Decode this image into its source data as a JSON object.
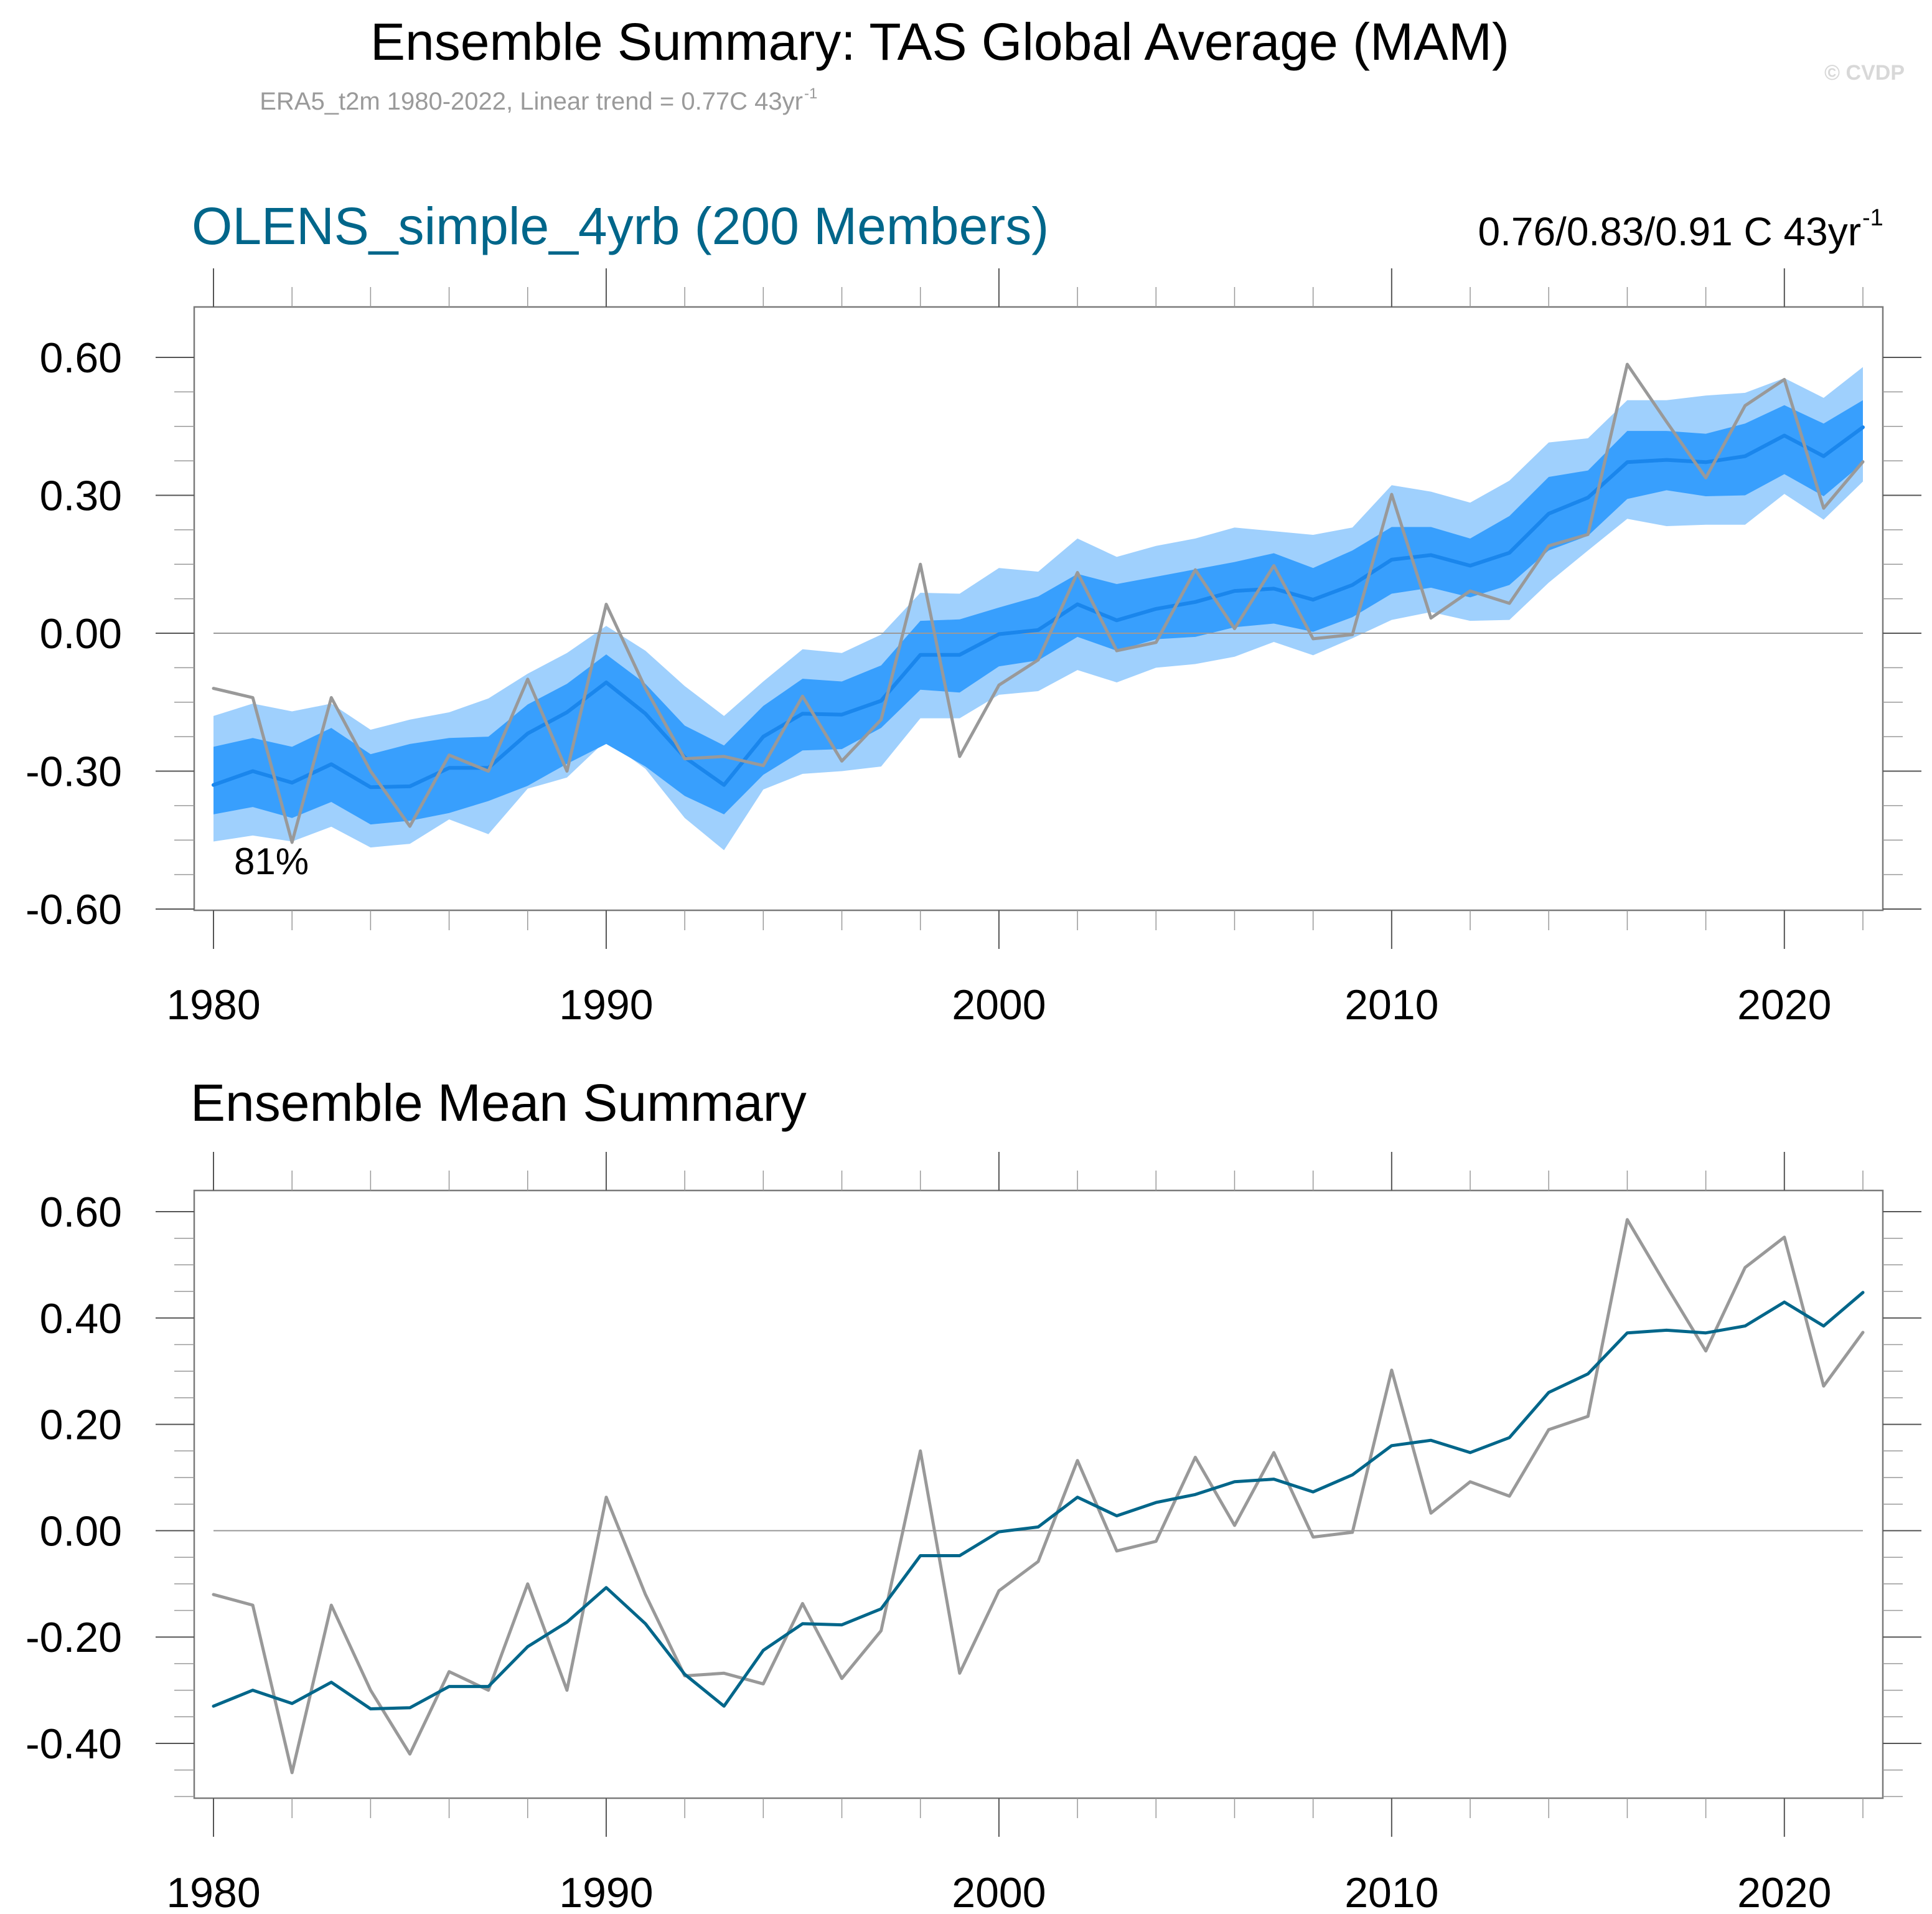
{
  "figure": {
    "title": "Ensemble Summary: TAS Global Average (MAM)",
    "subtitle_main": "ERA5_t2m 1980-2022, Linear trend = 0.77C 43yr",
    "subtitle_sup": "-1",
    "watermark": "© CVDP",
    "colors": {
      "light_band": "#9fd0fd",
      "dark_band": "#389ffd",
      "ens_mean_top": "#1a86ec",
      "ens_mean_bottom": "#00668a",
      "obs": "#999999",
      "panel_title": "#00668a"
    }
  },
  "chart_data": [
    {
      "type": "area",
      "title": "OLENS_simple_4yrb (200 Members)",
      "trend_text_main": "0.76/0.83/0.91 C 43yr",
      "trend_text_sup": "-1",
      "annotation": "81%",
      "xlabel": "",
      "ylabel": "",
      "xlim": [
        1980,
        2022
      ],
      "ylim": [
        -0.6,
        0.6
      ],
      "x_ticks": [
        1980,
        1990,
        2000,
        2010,
        2020
      ],
      "x_tick_labels": [
        "1980",
        "1990",
        "2000",
        "2010",
        "2020"
      ],
      "y_ticks": [
        -0.6,
        -0.3,
        0.0,
        0.3,
        0.6
      ],
      "y_tick_labels": [
        "-0.60",
        "-0.30",
        "0.00",
        "0.30",
        "0.60"
      ],
      "grid": false,
      "legend": "none",
      "x": [
        1980,
        1981,
        1982,
        1983,
        1984,
        1985,
        1986,
        1987,
        1988,
        1989,
        1990,
        1991,
        1992,
        1993,
        1994,
        1995,
        1996,
        1997,
        1998,
        1999,
        2000,
        2001,
        2002,
        2003,
        2004,
        2005,
        2006,
        2007,
        2008,
        2009,
        2010,
        2011,
        2012,
        2013,
        2014,
        2015,
        2016,
        2017,
        2018,
        2019,
        2020,
        2021,
        2022
      ],
      "series": [
        {
          "name": "Ensemble 2.5-97.5% upper",
          "role": "light_upper",
          "values": [
            -0.18,
            -0.153,
            -0.17,
            -0.153,
            -0.21,
            -0.188,
            -0.172,
            -0.142,
            -0.088,
            -0.043,
            0.016,
            -0.038,
            -0.115,
            -0.18,
            -0.105,
            -0.035,
            -0.043,
            -0.003,
            0.088,
            0.086,
            0.142,
            0.134,
            0.206,
            0.166,
            0.19,
            0.206,
            0.23,
            0.222,
            0.214,
            0.23,
            0.322,
            0.308,
            0.284,
            0.332,
            0.415,
            0.424,
            0.507,
            0.507,
            0.517,
            0.523,
            0.555,
            0.512,
            0.579
          ]
        },
        {
          "name": "Ensemble 10-90% upper",
          "role": "dark_upper",
          "values": [
            -0.247,
            -0.228,
            -0.247,
            -0.206,
            -0.263,
            -0.241,
            -0.228,
            -0.225,
            -0.155,
            -0.11,
            -0.046,
            -0.11,
            -0.201,
            -0.244,
            -0.158,
            -0.099,
            -0.105,
            -0.07,
            0.027,
            0.03,
            0.056,
            0.08,
            0.129,
            0.107,
            0.123,
            0.139,
            0.155,
            0.174,
            0.142,
            0.18,
            0.231,
            0.231,
            0.206,
            0.255,
            0.34,
            0.354,
            0.44,
            0.44,
            0.434,
            0.456,
            0.496,
            0.456,
            0.507
          ]
        },
        {
          "name": "Ensemble 10-90% lower",
          "role": "dark_lower",
          "values": [
            -0.394,
            -0.378,
            -0.402,
            -0.367,
            -0.416,
            -0.408,
            -0.391,
            -0.365,
            -0.332,
            -0.284,
            -0.241,
            -0.29,
            -0.354,
            -0.394,
            -0.308,
            -0.255,
            -0.252,
            -0.206,
            -0.123,
            -0.129,
            -0.072,
            -0.059,
            -0.008,
            -0.038,
            -0.013,
            -0.008,
            0.013,
            0.021,
            0.003,
            0.035,
            0.086,
            0.099,
            0.078,
            0.105,
            0.18,
            0.212,
            0.292,
            0.311,
            0.298,
            0.3,
            0.346,
            0.298,
            0.37
          ]
        },
        {
          "name": "Ensemble 2.5-97.5% lower",
          "role": "light_lower",
          "values": [
            -0.453,
            -0.44,
            -0.453,
            -0.421,
            -0.466,
            -0.458,
            -0.405,
            -0.437,
            -0.338,
            -0.314,
            -0.233,
            -0.295,
            -0.402,
            -0.472,
            -0.34,
            -0.306,
            -0.3,
            -0.29,
            -0.185,
            -0.185,
            -0.134,
            -0.126,
            -0.08,
            -0.107,
            -0.075,
            -0.067,
            -0.051,
            -0.019,
            -0.048,
            -0.011,
            0.029,
            0.046,
            0.027,
            0.029,
            0.11,
            0.18,
            0.249,
            0.233,
            0.236,
            0.236,
            0.303,
            0.247,
            0.33
          ]
        },
        {
          "name": "Ensemble Mean",
          "role": "mean",
          "values": [
            -0.33,
            -0.3,
            -0.325,
            -0.285,
            -0.335,
            -0.333,
            -0.293,
            -0.293,
            -0.218,
            -0.172,
            -0.107,
            -0.175,
            -0.27,
            -0.33,
            -0.225,
            -0.175,
            -0.177,
            -0.147,
            -0.047,
            -0.047,
            -0.002,
            0.007,
            0.063,
            0.028,
            0.053,
            0.068,
            0.092,
            0.097,
            0.073,
            0.105,
            0.16,
            0.17,
            0.147,
            0.175,
            0.26,
            0.295,
            0.372,
            0.377,
            0.372,
            0.385,
            0.43,
            0.385,
            0.448
          ]
        },
        {
          "name": "ERA5_t2m",
          "role": "obs",
          "values": [
            -0.12,
            -0.14,
            -0.455,
            -0.14,
            -0.3,
            -0.42,
            -0.265,
            -0.3,
            -0.1,
            -0.3,
            0.063,
            -0.12,
            -0.273,
            -0.268,
            -0.288,
            -0.137,
            -0.278,
            -0.188,
            0.15,
            -0.268,
            -0.113,
            -0.058,
            0.132,
            -0.038,
            -0.02,
            0.138,
            0.01,
            0.147,
            -0.012,
            -0.003,
            0.302,
            0.033,
            0.092,
            0.065,
            0.19,
            0.215,
            0.585,
            0.46,
            0.338,
            0.495,
            0.552,
            0.272,
            0.373
          ]
        }
      ]
    },
    {
      "type": "line",
      "title": "Ensemble Mean Summary",
      "xlabel": "",
      "ylabel": "",
      "xlim": [
        1980,
        2022
      ],
      "ylim": [
        -0.5,
        0.65
      ],
      "x_ticks": [
        1980,
        1990,
        2000,
        2010,
        2020
      ],
      "x_tick_labels": [
        "1980",
        "1990",
        "2000",
        "2010",
        "2020"
      ],
      "y_ticks": [
        -0.4,
        -0.2,
        0.0,
        0.2,
        0.4,
        0.6
      ],
      "y_tick_labels": [
        "-0.40",
        "-0.20",
        "0.00",
        "0.20",
        "0.40",
        "0.60"
      ],
      "grid": false,
      "legend": "none",
      "x": [
        1980,
        1981,
        1982,
        1983,
        1984,
        1985,
        1986,
        1987,
        1988,
        1989,
        1990,
        1991,
        1992,
        1993,
        1994,
        1995,
        1996,
        1997,
        1998,
        1999,
        2000,
        2001,
        2002,
        2003,
        2004,
        2005,
        2006,
        2007,
        2008,
        2009,
        2010,
        2011,
        2012,
        2013,
        2014,
        2015,
        2016,
        2017,
        2018,
        2019,
        2020,
        2021,
        2022
      ],
      "series": [
        {
          "name": "OLENS_simple_4yrb Ensemble Mean",
          "role": "mean",
          "values": [
            -0.33,
            -0.3,
            -0.325,
            -0.285,
            -0.335,
            -0.333,
            -0.293,
            -0.293,
            -0.218,
            -0.172,
            -0.107,
            -0.175,
            -0.27,
            -0.33,
            -0.225,
            -0.175,
            -0.177,
            -0.147,
            -0.047,
            -0.047,
            -0.002,
            0.007,
            0.063,
            0.028,
            0.053,
            0.068,
            0.092,
            0.097,
            0.073,
            0.105,
            0.16,
            0.17,
            0.147,
            0.175,
            0.26,
            0.295,
            0.372,
            0.377,
            0.372,
            0.385,
            0.43,
            0.385,
            0.448
          ]
        },
        {
          "name": "ERA5_t2m",
          "role": "obs",
          "values": [
            -0.12,
            -0.14,
            -0.455,
            -0.14,
            -0.3,
            -0.42,
            -0.265,
            -0.3,
            -0.1,
            -0.3,
            0.063,
            -0.12,
            -0.273,
            -0.268,
            -0.288,
            -0.137,
            -0.278,
            -0.188,
            0.15,
            -0.268,
            -0.113,
            -0.058,
            0.132,
            -0.038,
            -0.02,
            0.138,
            0.01,
            0.147,
            -0.012,
            -0.003,
            0.302,
            0.033,
            0.092,
            0.065,
            0.19,
            0.215,
            0.585,
            0.46,
            0.338,
            0.495,
            0.552,
            0.272,
            0.373
          ]
        }
      ]
    }
  ]
}
